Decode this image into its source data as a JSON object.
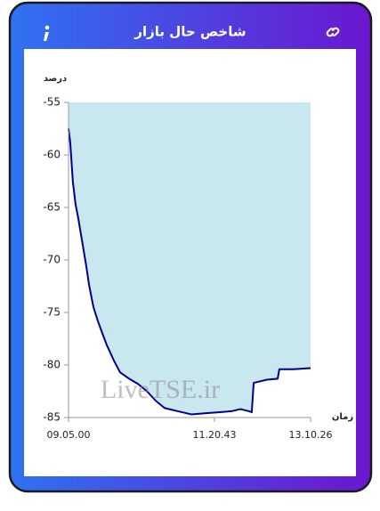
{
  "header": {
    "title": "شاخص حال بازار"
  },
  "chart_data": {
    "type": "line",
    "y_label": "درصد",
    "x_label": "زمان",
    "watermark": "LiveTSE.ir",
    "x": [
      0,
      0.7,
      1.8,
      2.9,
      4,
      4.8,
      5.9,
      7.4,
      8.5,
      10.3,
      12.1,
      14,
      15.8,
      18.8,
      21.3,
      25,
      28.7,
      32.4,
      36,
      39.7,
      45.2,
      50.7,
      56.3,
      61.8,
      67.3,
      71,
      74.6,
      75.7,
      76.5,
      82,
      86.4,
      87.1,
      93,
      100
    ],
    "series": [
      {
        "color": "#00008b",
        "fill_color": "#c9e7ef",
        "values": [
          -57.5,
          -58.8,
          -62.6,
          -64.7,
          -66,
          -67.1,
          -68.6,
          -70.7,
          -72.4,
          -74.5,
          -75.8,
          -77,
          -78.1,
          -79.6,
          -80.7,
          -81.3,
          -81.8,
          -82.5,
          -83.4,
          -84.1,
          -84.4,
          -84.7,
          -84.6,
          -84.5,
          -84.4,
          -84.2,
          -84.4,
          -84.5,
          -81.7,
          -81.4,
          -81.3,
          -80.4,
          -80.4,
          -80.3
        ]
      }
    ],
    "xlim": [
      0,
      100
    ],
    "xticks": [
      {
        "value": 0,
        "label": "09.05.00"
      },
      {
        "value": 60.3,
        "label": "11.20.43"
      },
      {
        "value": 100,
        "label": "13.10.26"
      }
    ],
    "ylim": [
      -85,
      -55
    ],
    "yticks": [
      -85,
      -80,
      -75,
      -70,
      -65,
      -60,
      -55
    ]
  }
}
